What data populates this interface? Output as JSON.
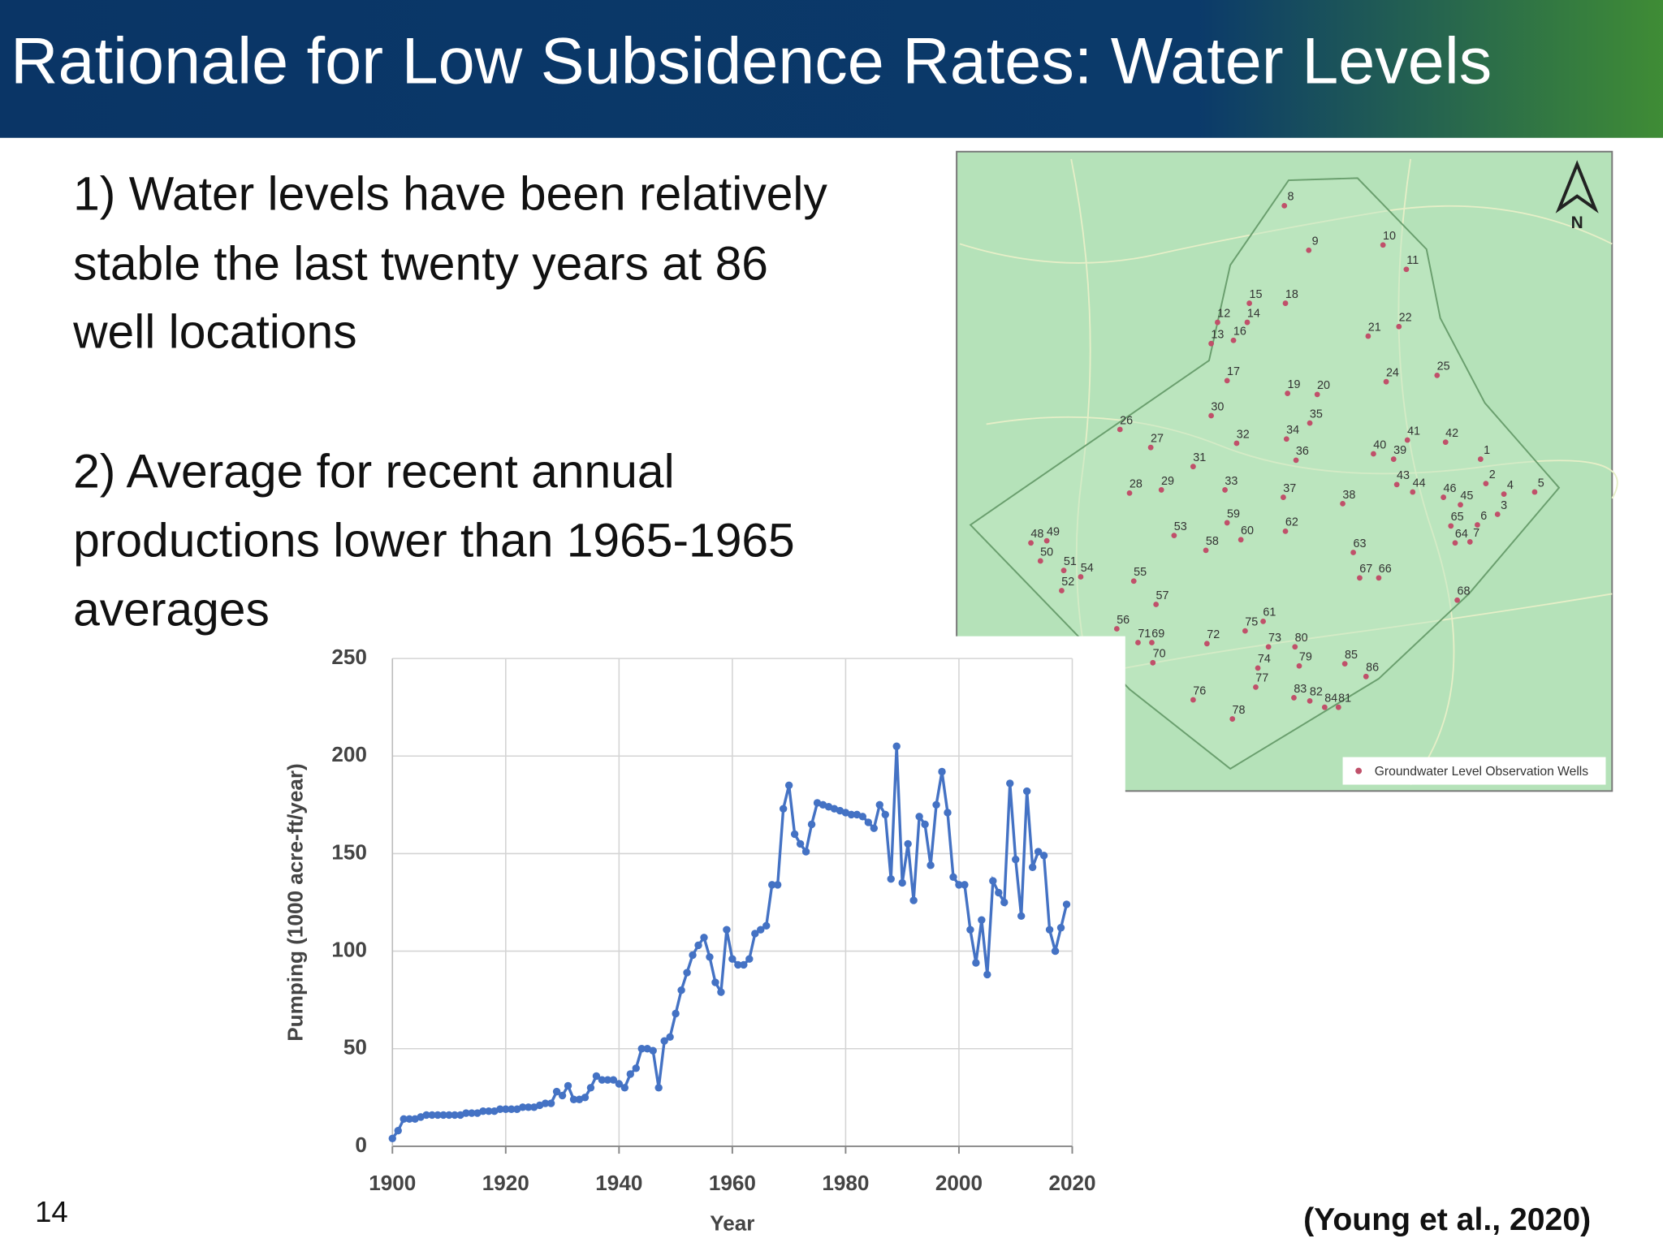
{
  "header": {
    "title": "Rationale for Low Subsidence Rates:  Water Levels"
  },
  "bullets": [
    [
      "1) Water levels have been relatively",
      "stable the last twenty years at 86",
      "well locations"
    ],
    [
      "2) Average for recent annual",
      "productions lower than 1965-1965",
      "averages"
    ]
  ],
  "map": {
    "north": "N",
    "legend": "Groundwater Level Observation Wells",
    "wells": [
      "1",
      "2",
      "3",
      "4",
      "5",
      "6",
      "7",
      "8",
      "9",
      "10",
      "11",
      "12",
      "13",
      "14",
      "15",
      "16",
      "17",
      "18",
      "19",
      "20",
      "21",
      "22",
      "24",
      "25",
      "26",
      "27",
      "28",
      "29",
      "30",
      "31",
      "32",
      "33",
      "34",
      "35",
      "36",
      "37",
      "38",
      "39",
      "40",
      "41",
      "42",
      "43",
      "44",
      "45",
      "46",
      "48",
      "49",
      "50",
      "51",
      "52",
      "53",
      "54",
      "55",
      "56",
      "57",
      "58",
      "59",
      "60",
      "61",
      "62",
      "63",
      "64",
      "65",
      "66",
      "67",
      "68",
      "69",
      "70",
      "71",
      "72",
      "73",
      "74",
      "75",
      "76",
      "77",
      "78",
      "79",
      "80",
      "81",
      "82",
      "83",
      "84",
      "85",
      "86"
    ]
  },
  "chart_data": {
    "type": "line",
    "xlabel": "Year",
    "ylabel": "Pumping (1000 acre-ft/year)",
    "color": "#4472c4",
    "grid": true,
    "xlim": [
      1900,
      2020
    ],
    "ylim": [
      0,
      250
    ],
    "xticks": [
      1900,
      1920,
      1940,
      1960,
      1980,
      2000,
      2020
    ],
    "yticks": [
      0,
      50,
      100,
      150,
      200,
      250
    ],
    "x": [
      1900,
      1901,
      1902,
      1903,
      1904,
      1905,
      1906,
      1907,
      1908,
      1909,
      1910,
      1911,
      1912,
      1913,
      1914,
      1915,
      1916,
      1917,
      1918,
      1919,
      1920,
      1921,
      1922,
      1923,
      1924,
      1925,
      1926,
      1927,
      1928,
      1929,
      1930,
      1931,
      1932,
      1933,
      1934,
      1935,
      1936,
      1937,
      1938,
      1939,
      1940,
      1941,
      1942,
      1943,
      1944,
      1945,
      1946,
      1947,
      1948,
      1949,
      1950,
      1951,
      1952,
      1953,
      1954,
      1955,
      1956,
      1957,
      1958,
      1959,
      1960,
      1961,
      1962,
      1963,
      1964,
      1965,
      1966,
      1967,
      1968,
      1969,
      1970,
      1971,
      1972,
      1973,
      1974,
      1975,
      1976,
      1977,
      1978,
      1979,
      1980,
      1981,
      1982,
      1983,
      1984,
      1985,
      1986,
      1987,
      1988,
      1989,
      1990,
      1991,
      1992,
      1993,
      1994,
      1995,
      1996,
      1997,
      1998,
      1999,
      2000,
      2001,
      2002,
      2003,
      2004,
      2005,
      2006,
      2007,
      2008,
      2009,
      2010,
      2011,
      2012,
      2013,
      2014,
      2015,
      2016,
      2017,
      2018,
      2019
    ],
    "values": [
      4,
      8,
      14,
      14,
      14,
      15,
      16,
      16,
      16,
      16,
      16,
      16,
      16,
      17,
      17,
      17,
      18,
      18,
      18,
      19,
      19,
      19,
      19,
      20,
      20,
      20,
      21,
      22,
      22,
      28,
      26,
      31,
      24,
      24,
      25,
      30,
      36,
      34,
      34,
      34,
      32,
      30,
      37,
      40,
      50,
      50,
      49,
      30,
      54,
      56,
      68,
      80,
      89,
      98,
      103,
      107,
      97,
      84,
      79,
      111,
      96,
      93,
      93,
      96,
      109,
      111,
      113,
      134,
      134,
      173,
      185,
      160,
      155,
      151,
      165,
      176,
      175,
      174,
      173,
      172,
      171,
      170,
      170,
      169,
      166,
      163,
      175,
      170,
      137,
      205,
      135,
      155,
      126,
      169,
      165,
      144,
      175,
      192,
      171,
      138,
      134,
      134,
      111,
      94,
      116,
      88,
      136,
      130,
      125,
      186,
      147,
      118,
      182,
      143,
      151,
      149,
      111,
      100,
      112,
      124
    ]
  },
  "footer": {
    "page": "14",
    "citation": "(Young et al., 2020)"
  }
}
